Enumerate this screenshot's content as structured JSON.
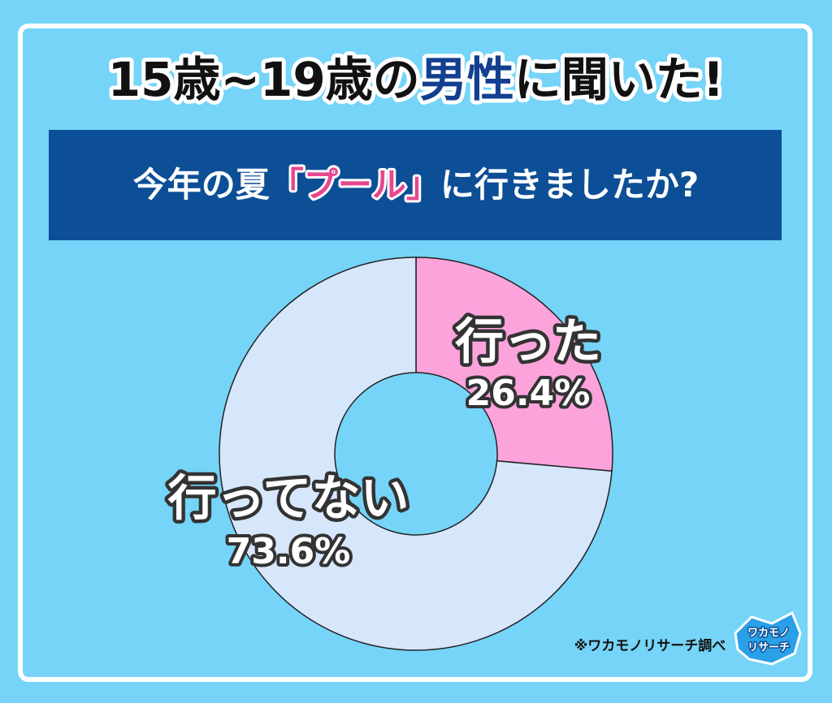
{
  "chart_data": {
    "type": "pie",
    "title_parts": [
      "15歳~19歳の",
      "男性",
      "に聞いた!"
    ],
    "subtitle_parts": [
      "今年の夏",
      "「プール」",
      "に行きましたか?"
    ],
    "categories": [
      "行った",
      "行ってない"
    ],
    "values": [
      26.4,
      73.6
    ],
    "value_labels": [
      "26.4%",
      "73.6%"
    ],
    "colors": [
      "#fca3dc",
      "#d6e6fb"
    ],
    "source": "※ワカモノリサーチ調べ",
    "logo": [
      "ワカモノ",
      "リサーチ"
    ]
  }
}
